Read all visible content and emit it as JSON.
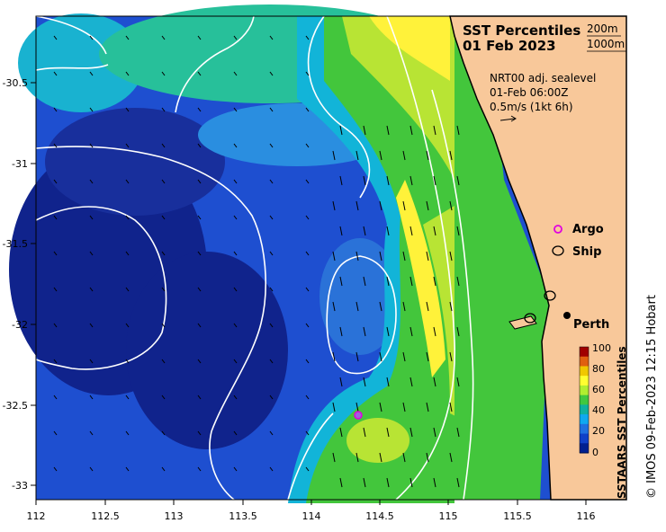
{
  "title": {
    "line1": "SST Percentiles",
    "line2": "01 Feb 2023"
  },
  "isobaths": {
    "shallow": "200m",
    "deep": "1000m"
  },
  "current_info": {
    "line1": "NRT00 adj. sealevel",
    "line2": "01-Feb 06:00Z",
    "line3": "0.5m/s (1kt 6h)"
  },
  "legend": {
    "argo": "Argo",
    "ship": "Ship",
    "argo_color": "#e000e0",
    "ship_color": "#000000"
  },
  "places": {
    "perth": "Perth"
  },
  "colorbar": {
    "title": "SSTAARS SST Percentiles",
    "ticks": [
      "100",
      "80",
      "60",
      "40",
      "20",
      "0"
    ],
    "colors": [
      "#a00000",
      "#e06010",
      "#f0c800",
      "#ffff30",
      "#b0ee30",
      "#40c840",
      "#10b0a0",
      "#10a8f0",
      "#2070e0",
      "#1040c8",
      "#002090"
    ]
  },
  "credit": "© IMOS 09-Feb-2023 12:15 Hobart",
  "colors": {
    "land": "#f8c89a",
    "coast_black": "#000000",
    "deep_blue": "#10238c",
    "mid_blue": "#1e4fd0",
    "cyan": "#12b4d8",
    "teal_green": "#23c276",
    "green": "#43c63c",
    "yellow_green": "#b8e434",
    "yellow": "#fff23a"
  },
  "chart_data": {
    "type": "heatmap",
    "title": "SST Percentiles 01 Feb 2023",
    "x_ticks": [
      "112",
      "112.5",
      "113",
      "113.5",
      "114",
      "114.5",
      "115",
      "115.5",
      "116"
    ],
    "y_ticks": [
      "-30.5",
      "-31",
      "-31.5",
      "-32",
      "-32.5",
      "-33"
    ],
    "xlim": [
      112,
      116.3
    ],
    "ylim": [
      -33.1,
      -30.1
    ],
    "argo_float": {
      "lon": 114.35,
      "lat": -32.57
    },
    "ships": [
      {
        "lon": 115.75,
        "lat": -31.93
      },
      {
        "lon": 115.6,
        "lat": -31.97
      }
    ],
    "perth": {
      "lon": 115.86,
      "lat": -31.95
    }
  }
}
